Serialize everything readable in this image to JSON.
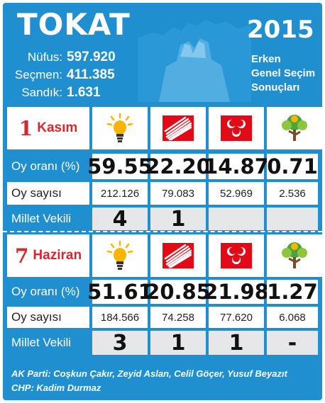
{
  "header": {
    "city": "TOKAT",
    "stats": [
      {
        "label": "Nüfus:",
        "value": "597.920"
      },
      {
        "label": "Seçmen:",
        "value": "411.385"
      },
      {
        "label": "Sandık:",
        "value": "1.631"
      }
    ],
    "year": "2015",
    "election_lines": [
      "Erken",
      "Genel Seçim",
      "Sonuçları"
    ]
  },
  "parties": [
    "AK Parti",
    "CHP",
    "MHP",
    "HDP"
  ],
  "icons": {
    "akp": "lightbulb-icon",
    "chp": "six-arrows-icon",
    "mhp": "three-crescents-icon",
    "hdp": "tree-icon"
  },
  "colors": {
    "background": "#1f8fd0",
    "dark_label": "#1a4f8a",
    "date_red": "#d7262e",
    "chp_red": "#e30a17",
    "mhp_red": "#e30a17",
    "akp_yellow": "#f7b500",
    "hdp_green": "#4aa33b"
  },
  "sections": [
    {
      "day": "1",
      "month": "Kasım",
      "row_labels": {
        "rate": "Oy oranı (%)",
        "votes": "Oy sayısı",
        "seats": "Millet Vekili"
      },
      "rates": [
        "59.55",
        "22.20",
        "14.87",
        "0.71"
      ],
      "votes": [
        "212.126",
        "79.083",
        "52.969",
        "2.536"
      ],
      "seats": [
        "4",
        "1",
        "",
        ""
      ]
    },
    {
      "day": "7",
      "month": "Haziran",
      "row_labels": {
        "rate": "Oy oranı (%)",
        "votes": "Oy sayısı",
        "seats": "Millet Vekili"
      },
      "rates": [
        "51.61",
        "20.85",
        "21.98",
        "1.27"
      ],
      "votes": [
        "184.566",
        "74.258",
        "77.620",
        "6.068"
      ],
      "seats": [
        "3",
        "1",
        "1",
        "-"
      ]
    }
  ],
  "footer": {
    "line1": "AK Parti: Coşkun Çakır, Zeyid Aslan, Celil Göçer, Yusuf Beyazıt",
    "line2": "CHP: Kadim Durmaz"
  }
}
